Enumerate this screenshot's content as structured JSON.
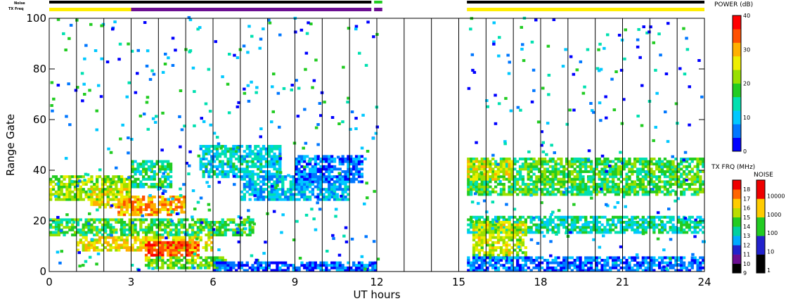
{
  "chart_data": {
    "type": "heatmap",
    "title": "",
    "xlabel": "UT hours",
    "ylabel": "Range Gate",
    "xlim": [
      0,
      24
    ],
    "ylim": [
      0,
      100
    ],
    "x_ticks": [
      0,
      3,
      6,
      9,
      12,
      15,
      18,
      21,
      24
    ],
    "y_ticks": [
      0,
      20,
      40,
      60,
      80,
      100
    ],
    "grid_hours": [
      1,
      2,
      3,
      4,
      5,
      6,
      7,
      8,
      9,
      10,
      11,
      12,
      13,
      14,
      15,
      16,
      17,
      18,
      19,
      20,
      21,
      22,
      23
    ],
    "data_gap": [
      12,
      15.3
    ],
    "status_strips": {
      "noise_label": "Noise",
      "txfreq_label": "TX Freq",
      "noise_segments": [
        {
          "start": 0.0,
          "end": 11.8,
          "color": "#000000"
        },
        {
          "start": 11.9,
          "end": 12.2,
          "color": "#22cc22"
        },
        {
          "start": 15.3,
          "end": 24.0,
          "color": "#000000"
        }
      ],
      "txfreq_segments": [
        {
          "start": 0.0,
          "end": 3.0,
          "color": "#ffee00"
        },
        {
          "start": 3.0,
          "end": 11.8,
          "color": "#6a0d91"
        },
        {
          "start": 11.9,
          "end": 12.2,
          "color": "#6a0d91"
        },
        {
          "start": 15.3,
          "end": 24.0,
          "color": "#ffee00"
        }
      ]
    },
    "power_colorbar": {
      "title": "POWER (dB)",
      "ticks": [
        0,
        10,
        20,
        30,
        40
      ],
      "range": [
        0,
        40
      ],
      "colors": [
        "#0000ff",
        "#0077ff",
        "#00c8ff",
        "#00e0b0",
        "#22cc22",
        "#99e000",
        "#eeee00",
        "#ffb000",
        "#ff5000",
        "#ff0000"
      ]
    },
    "txfreq_colorbar": {
      "title": "TX FRQ (MHz)",
      "ticks": [
        9,
        10,
        11,
        12,
        13,
        14,
        15,
        16,
        17,
        18
      ],
      "colors": [
        "#000000",
        "#6a0d91",
        "#2222cc",
        "#00aaff",
        "#00d0a0",
        "#22cc22",
        "#bbdd00",
        "#ffcc00",
        "#ff6600",
        "#ee0000"
      ]
    },
    "noise_colorbar": {
      "title": "NOISE",
      "ticks": [
        "1",
        "10",
        "100",
        "1000",
        "10000"
      ],
      "colors": [
        "#000000",
        "#2222cc",
        "#22cc22",
        "#ffcc00",
        "#ee0000"
      ]
    },
    "echo_regions": [
      {
        "t0": 0.0,
        "t1": 3.0,
        "g0": 28,
        "g1": 38,
        "p": 22
      },
      {
        "t0": 1.5,
        "t1": 3.0,
        "g0": 25,
        "g1": 33,
        "p": 25
      },
      {
        "t0": 3.0,
        "t1": 4.5,
        "g0": 33,
        "g1": 44,
        "p": 16
      },
      {
        "t0": 0.0,
        "t1": 7.5,
        "g0": 14,
        "g1": 21,
        "p": 18
      },
      {
        "t0": 2.5,
        "t1": 5.0,
        "g0": 22,
        "g1": 30,
        "p": 30
      },
      {
        "t0": 1.0,
        "t1": 6.0,
        "g0": 8,
        "g1": 14,
        "p": 26
      },
      {
        "t0": 3.5,
        "t1": 5.5,
        "g0": 6,
        "g1": 12,
        "p": 34
      },
      {
        "t0": 3.5,
        "t1": 6.5,
        "g0": 1,
        "g1": 6,
        "p": 20
      },
      {
        "t0": 5.5,
        "t1": 8.5,
        "g0": 37,
        "g1": 50,
        "p": 12
      },
      {
        "t0": 7.0,
        "t1": 11.0,
        "g0": 28,
        "g1": 38,
        "p": 10
      },
      {
        "t0": 9.0,
        "t1": 11.5,
        "g0": 35,
        "g1": 46,
        "p": 6
      },
      {
        "t0": 6.0,
        "t1": 12.0,
        "g0": 0,
        "g1": 4,
        "p": 5
      },
      {
        "t0": 15.3,
        "t1": 24.0,
        "g0": 30,
        "g1": 45,
        "p": 18
      },
      {
        "t0": 15.3,
        "t1": 17.0,
        "g0": 36,
        "g1": 44,
        "p": 26
      },
      {
        "t0": 15.3,
        "t1": 24.0,
        "g0": 15,
        "g1": 22,
        "p": 14
      },
      {
        "t0": 15.5,
        "t1": 17.5,
        "g0": 5,
        "g1": 20,
        "p": 24
      },
      {
        "t0": 15.3,
        "t1": 24.0,
        "g0": 0,
        "g1": 6,
        "p": 6
      }
    ]
  }
}
